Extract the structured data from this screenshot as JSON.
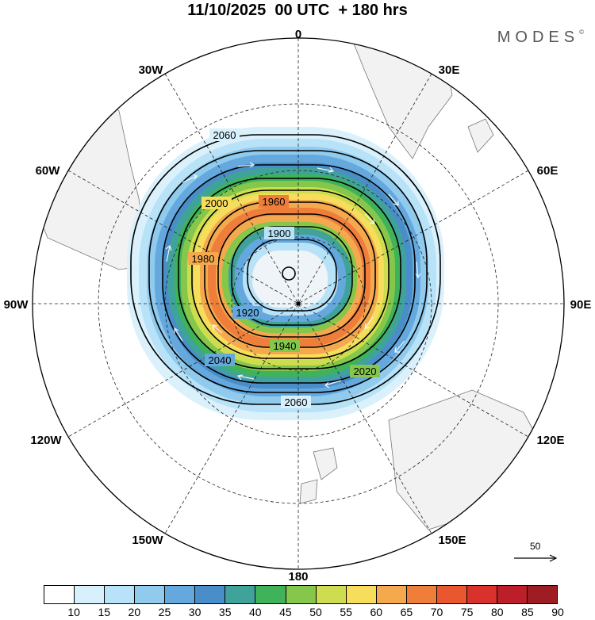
{
  "header": {
    "date": "11/10/2025",
    "cycle": "00 UTC",
    "lead": "+ 180 hrs",
    "brand": "MODES"
  },
  "map": {
    "projection": "polar-stereographic-south",
    "longitude_labels": [
      "0",
      "30E",
      "60E",
      "90E",
      "120E",
      "150E",
      "180",
      "150W",
      "120W",
      "90W",
      "60W",
      "30W"
    ],
    "contour_labels": [
      "2060",
      "2040",
      "2020",
      "2000",
      "1980",
      "1960",
      "1940",
      "1920",
      "1900"
    ],
    "reference_vector": "50",
    "land_color": "#f2f2f2",
    "coast_color": "#777777"
  },
  "colorbar": {
    "tick_labels": [
      "10",
      "15",
      "20",
      "25",
      "30",
      "35",
      "40",
      "45",
      "50",
      "55",
      "60",
      "65",
      "70",
      "75",
      "80",
      "85",
      "90"
    ],
    "colors": [
      "#ffffff",
      "#d8f0fc",
      "#b8e2f7",
      "#90cbee",
      "#64a8dd",
      "#4a8ec9",
      "#40a39a",
      "#3fb25a",
      "#84c74a",
      "#cedd4f",
      "#f7dd5c",
      "#f4a94e",
      "#ef7e3b",
      "#e9572f",
      "#d9312b",
      "#bc1e2a",
      "#9e1d24"
    ]
  }
}
